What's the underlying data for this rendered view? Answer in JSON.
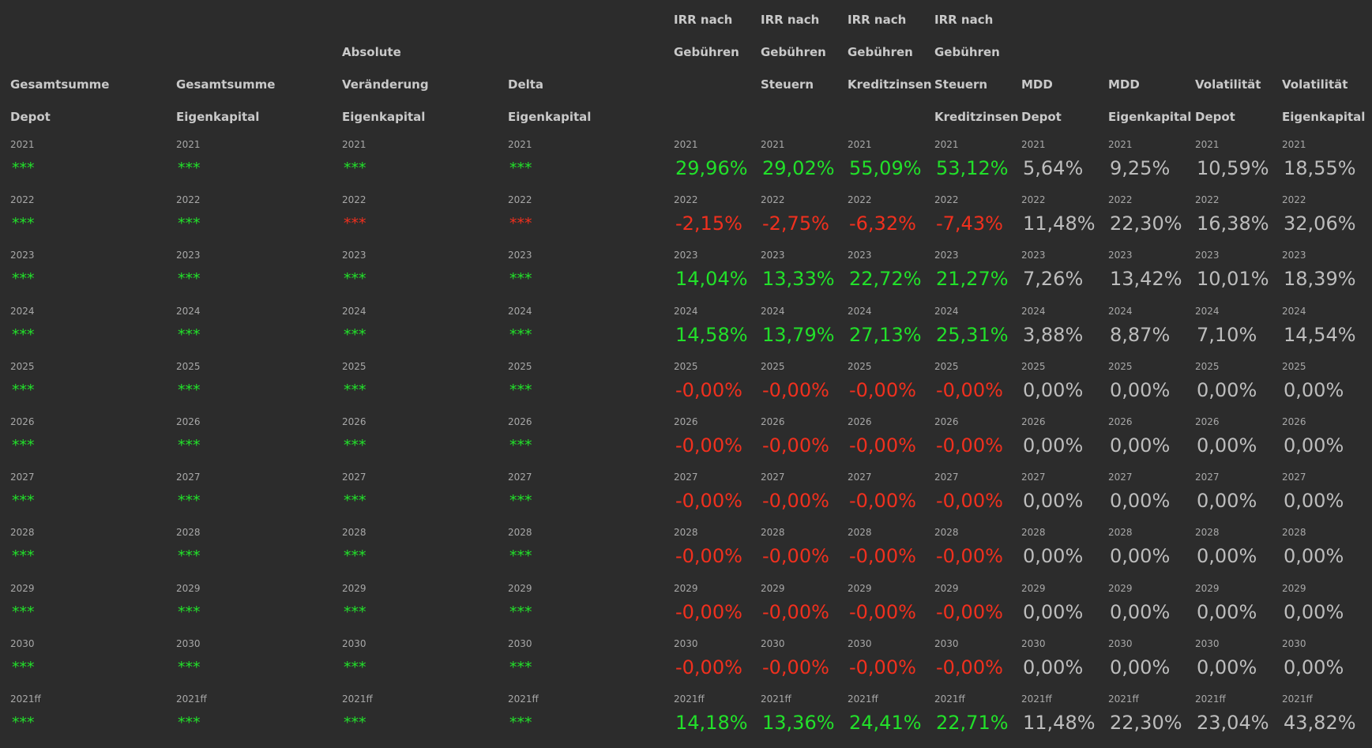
{
  "columns": [
    {
      "key": "c0",
      "header": [
        "",
        "",
        "Gesamtsumme",
        "Depot"
      ],
      "type": "stars",
      "values": [
        [
          "2021",
          "***",
          "green"
        ],
        [
          "2022",
          "***",
          "green"
        ],
        [
          "2023",
          "***",
          "green"
        ],
        [
          "2024",
          "***",
          "green"
        ],
        [
          "2025",
          "***",
          "green"
        ],
        [
          "2026",
          "***",
          "green"
        ],
        [
          "2027",
          "***",
          "green"
        ],
        [
          "2028",
          "***",
          "green"
        ],
        [
          "2029",
          "***",
          "green"
        ],
        [
          "2030",
          "***",
          "green"
        ],
        [
          "2021ff",
          "***",
          "green"
        ]
      ]
    },
    {
      "key": "c1",
      "header": [
        "",
        "",
        "Gesamtsumme",
        "Eigenkapital"
      ],
      "type": "stars",
      "values": [
        [
          "2021",
          "***",
          "green"
        ],
        [
          "2022",
          "***",
          "green"
        ],
        [
          "2023",
          "***",
          "green"
        ],
        [
          "2024",
          "***",
          "green"
        ],
        [
          "2025",
          "***",
          "green"
        ],
        [
          "2026",
          "***",
          "green"
        ],
        [
          "2027",
          "***",
          "green"
        ],
        [
          "2028",
          "***",
          "green"
        ],
        [
          "2029",
          "***",
          "green"
        ],
        [
          "2030",
          "***",
          "green"
        ],
        [
          "2021ff",
          "***",
          "green"
        ]
      ]
    },
    {
      "key": "c2",
      "header": [
        "",
        "Absolute",
        "Veränderung",
        "Eigenkapital"
      ],
      "type": "stars",
      "values": [
        [
          "2021",
          "***",
          "green"
        ],
        [
          "2022",
          "***",
          "red"
        ],
        [
          "2023",
          "***",
          "green"
        ],
        [
          "2024",
          "***",
          "green"
        ],
        [
          "2025",
          "***",
          "green"
        ],
        [
          "2026",
          "***",
          "green"
        ],
        [
          "2027",
          "***",
          "green"
        ],
        [
          "2028",
          "***",
          "green"
        ],
        [
          "2029",
          "***",
          "green"
        ],
        [
          "2030",
          "***",
          "green"
        ],
        [
          "2021ff",
          "***",
          "green"
        ]
      ]
    },
    {
      "key": "c3",
      "header": [
        "",
        "",
        "Delta",
        "Eigenkapital"
      ],
      "type": "stars",
      "values": [
        [
          "2021",
          "***",
          "green"
        ],
        [
          "2022",
          "***",
          "red"
        ],
        [
          "2023",
          "***",
          "green"
        ],
        [
          "2024",
          "***",
          "green"
        ],
        [
          "2025",
          "***",
          "green"
        ],
        [
          "2026",
          "***",
          "green"
        ],
        [
          "2027",
          "***",
          "green"
        ],
        [
          "2028",
          "***",
          "green"
        ],
        [
          "2029",
          "***",
          "green"
        ],
        [
          "2030",
          "***",
          "green"
        ],
        [
          "2021ff",
          "***",
          "green"
        ]
      ]
    },
    {
      "key": "c4",
      "header": [
        "IRR nach",
        "Gebühren",
        "",
        ""
      ],
      "type": "num",
      "values": [
        [
          "2021",
          "29,96%",
          "green"
        ],
        [
          "2022",
          "-2,15%",
          "red"
        ],
        [
          "2023",
          "14,04%",
          "green"
        ],
        [
          "2024",
          "14,58%",
          "green"
        ],
        [
          "2025",
          "-0,00%",
          "red"
        ],
        [
          "2026",
          "-0,00%",
          "red"
        ],
        [
          "2027",
          "-0,00%",
          "red"
        ],
        [
          "2028",
          "-0,00%",
          "red"
        ],
        [
          "2029",
          "-0,00%",
          "red"
        ],
        [
          "2030",
          "-0,00%",
          "red"
        ],
        [
          "2021ff",
          "14,18%",
          "green"
        ]
      ]
    },
    {
      "key": "c5",
      "header": [
        "IRR nach",
        "Gebühren",
        "Steuern",
        ""
      ],
      "type": "num",
      "values": [
        [
          "2021",
          "29,02%",
          "green"
        ],
        [
          "2022",
          "-2,75%",
          "red"
        ],
        [
          "2023",
          "13,33%",
          "green"
        ],
        [
          "2024",
          "13,79%",
          "green"
        ],
        [
          "2025",
          "-0,00%",
          "red"
        ],
        [
          "2026",
          "-0,00%",
          "red"
        ],
        [
          "2027",
          "-0,00%",
          "red"
        ],
        [
          "2028",
          "-0,00%",
          "red"
        ],
        [
          "2029",
          "-0,00%",
          "red"
        ],
        [
          "2030",
          "-0,00%",
          "red"
        ],
        [
          "2021ff",
          "13,36%",
          "green"
        ]
      ]
    },
    {
      "key": "c6",
      "header": [
        "IRR nach",
        "Gebühren",
        "Kreditzinsen",
        ""
      ],
      "type": "num",
      "values": [
        [
          "2021",
          "55,09%",
          "green"
        ],
        [
          "2022",
          "-6,32%",
          "red"
        ],
        [
          "2023",
          "22,72%",
          "green"
        ],
        [
          "2024",
          "27,13%",
          "green"
        ],
        [
          "2025",
          "-0,00%",
          "red"
        ],
        [
          "2026",
          "-0,00%",
          "red"
        ],
        [
          "2027",
          "-0,00%",
          "red"
        ],
        [
          "2028",
          "-0,00%",
          "red"
        ],
        [
          "2029",
          "-0,00%",
          "red"
        ],
        [
          "2030",
          "-0,00%",
          "red"
        ],
        [
          "2021ff",
          "24,41%",
          "green"
        ]
      ]
    },
    {
      "key": "c7",
      "header": [
        "IRR nach",
        "Gebühren",
        "Steuern",
        "Kreditzinsen"
      ],
      "type": "num",
      "values": [
        [
          "2021",
          "53,12%",
          "green"
        ],
        [
          "2022",
          "-7,43%",
          "red"
        ],
        [
          "2023",
          "21,27%",
          "green"
        ],
        [
          "2024",
          "25,31%",
          "green"
        ],
        [
          "2025",
          "-0,00%",
          "red"
        ],
        [
          "2026",
          "-0,00%",
          "red"
        ],
        [
          "2027",
          "-0,00%",
          "red"
        ],
        [
          "2028",
          "-0,00%",
          "red"
        ],
        [
          "2029",
          "-0,00%",
          "red"
        ],
        [
          "2030",
          "-0,00%",
          "red"
        ],
        [
          "2021ff",
          "22,71%",
          "green"
        ]
      ]
    },
    {
      "key": "c8",
      "header": [
        "",
        "",
        "MDD",
        "Depot"
      ],
      "type": "num",
      "values": [
        [
          "2021",
          "5,64%",
          "neutral"
        ],
        [
          "2022",
          "11,48%",
          "neutral"
        ],
        [
          "2023",
          "7,26%",
          "neutral"
        ],
        [
          "2024",
          "3,88%",
          "neutral"
        ],
        [
          "2025",
          "0,00%",
          "neutral"
        ],
        [
          "2026",
          "0,00%",
          "neutral"
        ],
        [
          "2027",
          "0,00%",
          "neutral"
        ],
        [
          "2028",
          "0,00%",
          "neutral"
        ],
        [
          "2029",
          "0,00%",
          "neutral"
        ],
        [
          "2030",
          "0,00%",
          "neutral"
        ],
        [
          "2021ff",
          "11,48%",
          "neutral"
        ]
      ]
    },
    {
      "key": "c9",
      "header": [
        "",
        "",
        "MDD",
        "Eigenkapital"
      ],
      "type": "num",
      "values": [
        [
          "2021",
          "9,25%",
          "neutral"
        ],
        [
          "2022",
          "22,30%",
          "neutral"
        ],
        [
          "2023",
          "13,42%",
          "neutral"
        ],
        [
          "2024",
          "8,87%",
          "neutral"
        ],
        [
          "2025",
          "0,00%",
          "neutral"
        ],
        [
          "2026",
          "0,00%",
          "neutral"
        ],
        [
          "2027",
          "0,00%",
          "neutral"
        ],
        [
          "2028",
          "0,00%",
          "neutral"
        ],
        [
          "2029",
          "0,00%",
          "neutral"
        ],
        [
          "2030",
          "0,00%",
          "neutral"
        ],
        [
          "2021ff",
          "22,30%",
          "neutral"
        ]
      ]
    },
    {
      "key": "c10",
      "header": [
        "",
        "",
        "Volatilität",
        "Depot"
      ],
      "type": "num",
      "values": [
        [
          "2021",
          "10,59%",
          "neutral"
        ],
        [
          "2022",
          "16,38%",
          "neutral"
        ],
        [
          "2023",
          "10,01%",
          "neutral"
        ],
        [
          "2024",
          "7,10%",
          "neutral"
        ],
        [
          "2025",
          "0,00%",
          "neutral"
        ],
        [
          "2026",
          "0,00%",
          "neutral"
        ],
        [
          "2027",
          "0,00%",
          "neutral"
        ],
        [
          "2028",
          "0,00%",
          "neutral"
        ],
        [
          "2029",
          "0,00%",
          "neutral"
        ],
        [
          "2030",
          "0,00%",
          "neutral"
        ],
        [
          "2021ff",
          "23,04%",
          "neutral"
        ]
      ]
    },
    {
      "key": "c11",
      "header": [
        "",
        "",
        "Volatilität",
        "Eigenkapital"
      ],
      "type": "num",
      "values": [
        [
          "2021",
          "18,55%",
          "neutral"
        ],
        [
          "2022",
          "32,06%",
          "neutral"
        ],
        [
          "2023",
          "18,39%",
          "neutral"
        ],
        [
          "2024",
          "14,54%",
          "neutral"
        ],
        [
          "2025",
          "0,00%",
          "neutral"
        ],
        [
          "2026",
          "0,00%",
          "neutral"
        ],
        [
          "2027",
          "0,00%",
          "neutral"
        ],
        [
          "2028",
          "0,00%",
          "neutral"
        ],
        [
          "2029",
          "0,00%",
          "neutral"
        ],
        [
          "2030",
          "0,00%",
          "neutral"
        ],
        [
          "2021ff",
          "43,82%",
          "neutral"
        ]
      ]
    }
  ],
  "colors": {
    "green": "#22e02a",
    "red": "#f0301e",
    "neutral": "#bdbdbd",
    "background": "#2c2c2c"
  }
}
